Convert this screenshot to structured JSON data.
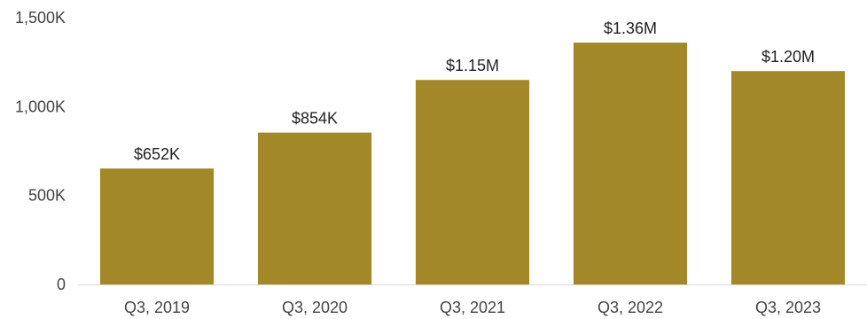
{
  "chart_data": {
    "type": "bar",
    "title": "",
    "xlabel": "",
    "ylabel": "",
    "categories": [
      "Q3, 2019",
      "Q3, 2020",
      "Q3, 2021",
      "Q3, 2022",
      "Q3, 2023"
    ],
    "series": [
      {
        "values": [
          652000,
          854000,
          1150000,
          1360000,
          1200000
        ],
        "labels": [
          "$652K",
          "$854K",
          "$1.15M",
          "$1.36M",
          "$1.20M"
        ],
        "color": "#a3882a"
      }
    ],
    "ylim": [
      0,
      1500000
    ],
    "y_ticks": [
      {
        "value": 0,
        "label": "0"
      },
      {
        "value": 500000,
        "label": "500K"
      },
      {
        "value": 1000000,
        "label": "1,000K"
      },
      {
        "value": 1500000,
        "label": "1,500K"
      }
    ],
    "grid": false,
    "legend": "none"
  }
}
